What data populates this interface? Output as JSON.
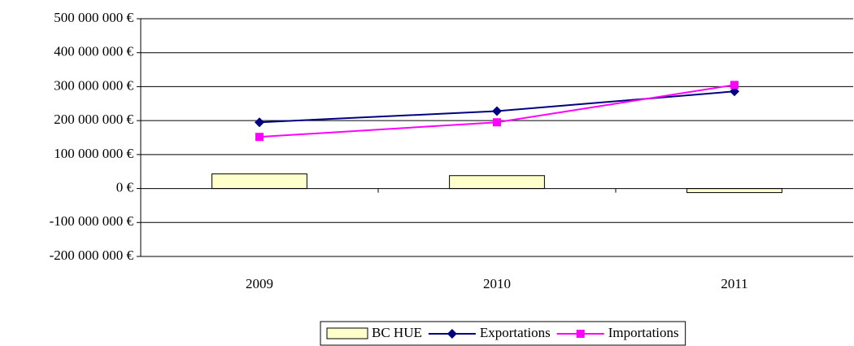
{
  "chart_data": {
    "type": "combo",
    "categories": [
      "2009",
      "2010",
      "2011"
    ],
    "series": [
      {
        "name": "BC HUE",
        "type": "bar",
        "color": "#ffffcc",
        "values": [
          43000000,
          38000000,
          -12000000
        ]
      },
      {
        "name": "Exportations",
        "type": "line",
        "color": "#000080",
        "marker": "diamond",
        "values": [
          195000000,
          228000000,
          286000000
        ]
      },
      {
        "name": "Importations",
        "type": "line",
        "color": "#ff00ff",
        "marker": "square",
        "values": [
          152000000,
          195000000,
          305000000
        ]
      }
    ],
    "ylim": [
      -200000000,
      500000000
    ],
    "yticks": [
      {
        "value": -200000000,
        "label": "-200 000 000 €"
      },
      {
        "value": -100000000,
        "label": "-100 000 000 €"
      },
      {
        "value": 0,
        "label": "0 €"
      },
      {
        "value": 100000000,
        "label": "100 000 000 €"
      },
      {
        "value": 200000000,
        "label": "200 000 000 €"
      },
      {
        "value": 300000000,
        "label": "300 000 000 €"
      },
      {
        "value": 400000000,
        "label": "400 000 000 €"
      },
      {
        "value": 500000000,
        "label": "500 000 000 €"
      }
    ],
    "grid": true,
    "legend": "bottom"
  }
}
